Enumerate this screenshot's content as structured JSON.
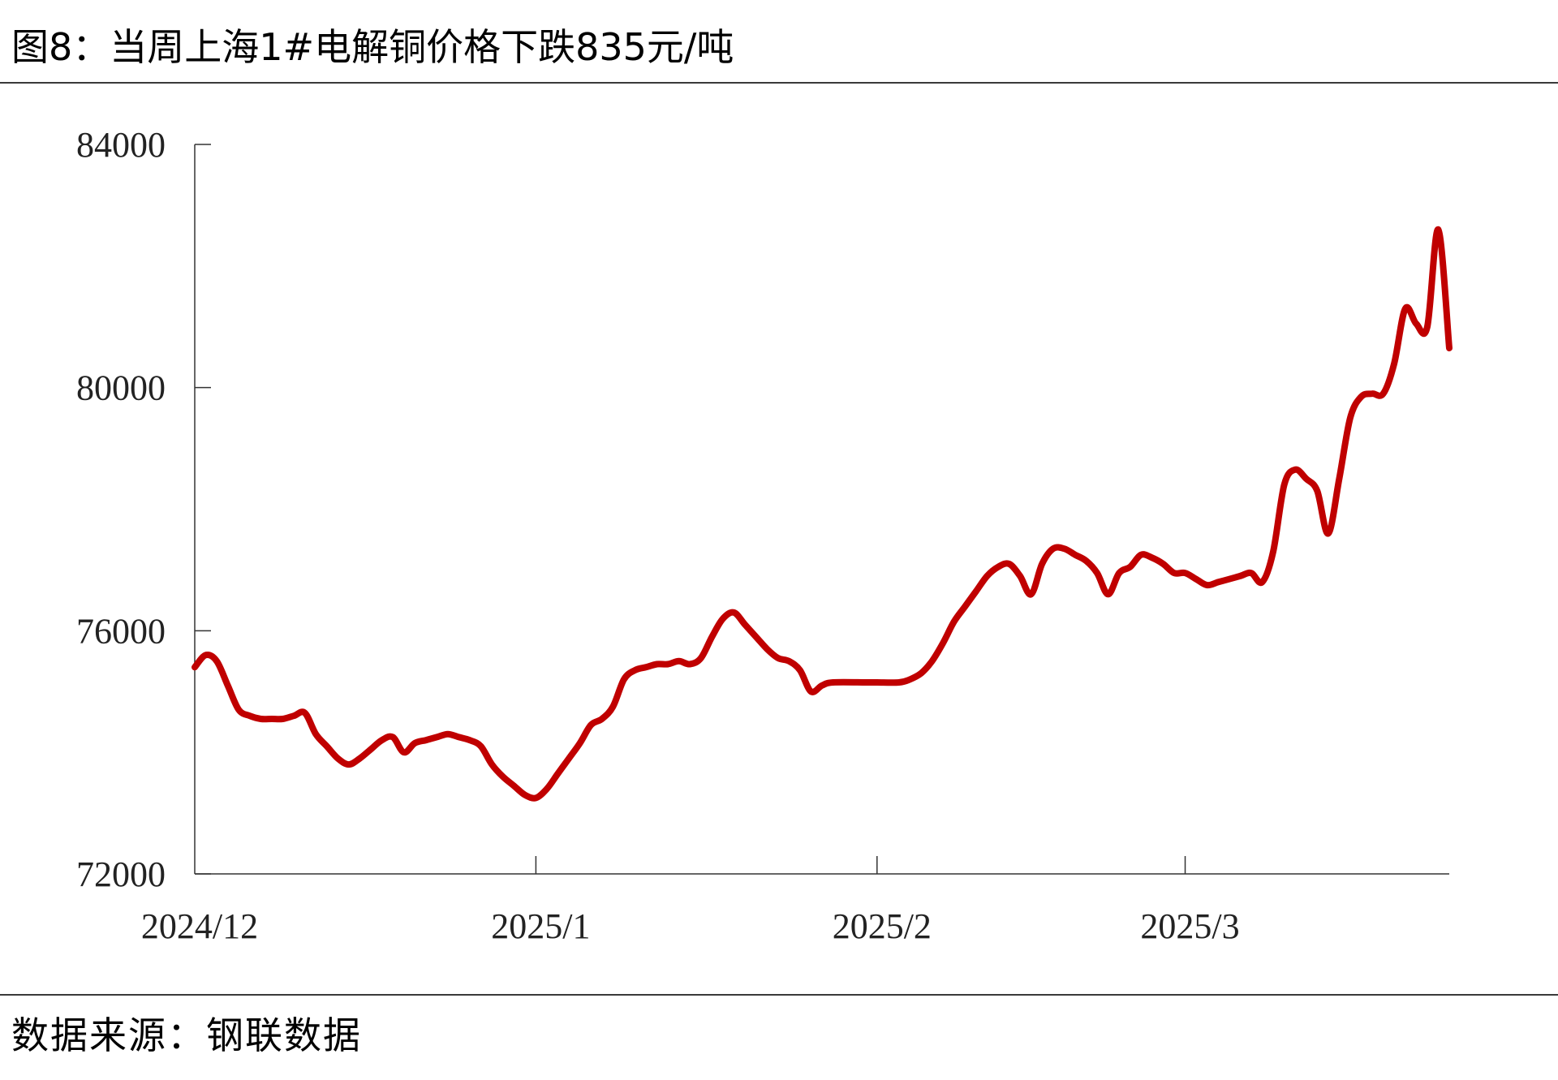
{
  "title": "图8：当周上海1#电解铜价格下跌835元/吨",
  "source": "数据来源：钢联数据",
  "colors": {
    "line": "#c00000",
    "axis": "#333333"
  },
  "chart_data": {
    "type": "line",
    "title": "图8：当周上海1#电解铜价格下跌835元/吨",
    "xlabel": "",
    "ylabel": "",
    "ylim": [
      72000,
      84000
    ],
    "yticks": [
      72000,
      76000,
      80000,
      84000
    ],
    "ytick_labels": [
      "72000",
      "76000",
      "80000",
      "84000"
    ],
    "xlim": [
      "2024-12-01",
      "2025-03-25"
    ],
    "xticks": [
      "2024-12-01",
      "2025-01-01",
      "2025-02-01",
      "2025-03-01"
    ],
    "xtick_labels": [
      "2024/12",
      "2025/1",
      "2025/2",
      "2025/3"
    ],
    "grid": false,
    "legend": "none",
    "series": [
      {
        "name": "",
        "color": "#c00000",
        "points": [
          [
            "2024-12-01",
            75400
          ],
          [
            "2024-12-02",
            75600
          ],
          [
            "2024-12-03",
            75500
          ],
          [
            "2024-12-04",
            75100
          ],
          [
            "2024-12-05",
            74700
          ],
          [
            "2024-12-06",
            74600
          ],
          [
            "2024-12-07",
            74550
          ],
          [
            "2024-12-08",
            74550
          ],
          [
            "2024-12-09",
            74550
          ],
          [
            "2024-12-10",
            74600
          ],
          [
            "2024-12-11",
            74650
          ],
          [
            "2024-12-12",
            74300
          ],
          [
            "2024-12-13",
            74100
          ],
          [
            "2024-12-14",
            73900
          ],
          [
            "2024-12-15",
            73800
          ],
          [
            "2024-12-16",
            73900
          ],
          [
            "2024-12-17",
            74050
          ],
          [
            "2024-12-18",
            74200
          ],
          [
            "2024-12-19",
            74250
          ],
          [
            "2024-12-20",
            74000
          ],
          [
            "2024-12-21",
            74150
          ],
          [
            "2024-12-22",
            74200
          ],
          [
            "2024-12-23",
            74250
          ],
          [
            "2024-12-24",
            74300
          ],
          [
            "2024-12-25",
            74250
          ],
          [
            "2024-12-26",
            74200
          ],
          [
            "2024-12-27",
            74100
          ],
          [
            "2024-12-28",
            73800
          ],
          [
            "2024-12-29",
            73600
          ],
          [
            "2024-12-30",
            73450
          ],
          [
            "2024-12-31",
            73300
          ],
          [
            "2025-01-01",
            73250
          ],
          [
            "2025-01-02",
            73400
          ],
          [
            "2025-01-03",
            73650
          ],
          [
            "2025-01-04",
            73900
          ],
          [
            "2025-01-05",
            74150
          ],
          [
            "2025-01-06",
            74450
          ],
          [
            "2025-01-07",
            74550
          ],
          [
            "2025-01-08",
            74750
          ],
          [
            "2025-01-09",
            75200
          ],
          [
            "2025-01-10",
            75350
          ],
          [
            "2025-01-11",
            75400
          ],
          [
            "2025-01-12",
            75450
          ],
          [
            "2025-01-13",
            75450
          ],
          [
            "2025-01-14",
            75500
          ],
          [
            "2025-01-15",
            75450
          ],
          [
            "2025-01-16",
            75550
          ],
          [
            "2025-01-17",
            75900
          ],
          [
            "2025-01-18",
            76200
          ],
          [
            "2025-01-19",
            76300
          ],
          [
            "2025-01-20",
            76100
          ],
          [
            "2025-01-21",
            75900
          ],
          [
            "2025-01-22",
            75700
          ],
          [
            "2025-01-23",
            75550
          ],
          [
            "2025-01-24",
            75500
          ],
          [
            "2025-01-25",
            75350
          ],
          [
            "2025-01-26",
            75000
          ],
          [
            "2025-01-27",
            75100
          ],
          [
            "2025-01-28",
            75150
          ],
          [
            "2025-01-31",
            75150
          ],
          [
            "2025-02-01",
            75150
          ],
          [
            "2025-02-03",
            75150
          ],
          [
            "2025-02-04",
            75200
          ],
          [
            "2025-02-05",
            75300
          ],
          [
            "2025-02-06",
            75500
          ],
          [
            "2025-02-07",
            75800
          ],
          [
            "2025-02-08",
            76150
          ],
          [
            "2025-02-09",
            76400
          ],
          [
            "2025-02-10",
            76650
          ],
          [
            "2025-02-11",
            76900
          ],
          [
            "2025-02-12",
            77050
          ],
          [
            "2025-02-13",
            77100
          ],
          [
            "2025-02-14",
            76900
          ],
          [
            "2025-02-15",
            76600
          ],
          [
            "2025-02-16",
            77100
          ],
          [
            "2025-02-17",
            77350
          ],
          [
            "2025-02-18",
            77350
          ],
          [
            "2025-02-19",
            77250
          ],
          [
            "2025-02-20",
            77150
          ],
          [
            "2025-02-21",
            76950
          ],
          [
            "2025-02-22",
            76600
          ],
          [
            "2025-02-23",
            76950
          ],
          [
            "2025-02-24",
            77050
          ],
          [
            "2025-02-25",
            77250
          ],
          [
            "2025-02-26",
            77200
          ],
          [
            "2025-02-27",
            77100
          ],
          [
            "2025-02-28",
            76950
          ],
          [
            "2025-03-01",
            76950
          ],
          [
            "2025-03-02",
            76850
          ],
          [
            "2025-03-03",
            76750
          ],
          [
            "2025-03-04",
            76800
          ],
          [
            "2025-03-05",
            76850
          ],
          [
            "2025-03-06",
            76900
          ],
          [
            "2025-03-07",
            76950
          ],
          [
            "2025-03-08",
            76800
          ],
          [
            "2025-03-09",
            77300
          ],
          [
            "2025-03-10",
            78400
          ],
          [
            "2025-03-11",
            78650
          ],
          [
            "2025-03-12",
            78500
          ],
          [
            "2025-03-13",
            78300
          ],
          [
            "2025-03-14",
            77600
          ],
          [
            "2025-03-15",
            78500
          ],
          [
            "2025-03-16",
            79500
          ],
          [
            "2025-03-17",
            79850
          ],
          [
            "2025-03-18",
            79900
          ],
          [
            "2025-03-19",
            79900
          ],
          [
            "2025-03-20",
            80400
          ],
          [
            "2025-03-21",
            81300
          ],
          [
            "2025-03-22",
            81050
          ],
          [
            "2025-03-23",
            81000
          ],
          [
            "2025-03-24",
            82600
          ],
          [
            "2025-03-25",
            80650
          ]
        ]
      }
    ]
  }
}
